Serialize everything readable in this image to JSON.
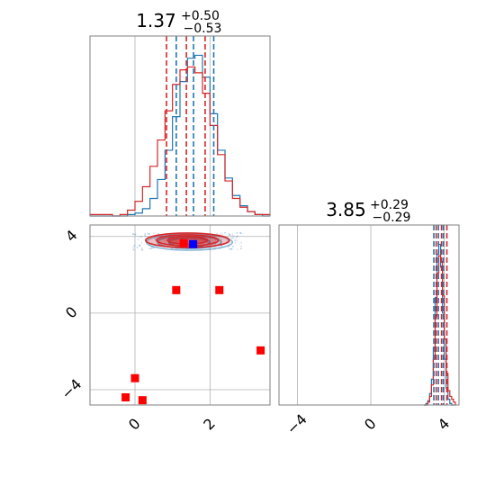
{
  "chart_data": {
    "type": "corner",
    "colors": {
      "series_a": "#1f77b4",
      "series_b": "#d62728",
      "marker_blue": "#0000ff",
      "marker_red": "#ff0000",
      "grid": "#b0b0b0",
      "axes": "#808080"
    },
    "panels": {
      "hist_x": {
        "title": {
          "main": "1.37",
          "sup": "+0.50",
          "sub": "−0.53"
        },
        "xlim": [
          -1.2,
          3.6
        ],
        "grid_x": [
          0,
          2
        ],
        "series_a": {
          "bins": [
            -1.2,
            -1.0,
            -0.8,
            -0.6,
            -0.4,
            -0.2,
            0.0,
            0.2,
            0.4,
            0.6,
            0.8,
            1.0,
            1.2,
            1.4,
            1.6,
            1.8,
            2.0,
            2.2,
            2.4,
            2.6,
            2.8,
            3.0,
            3.2,
            3.4,
            3.6
          ],
          "counts": [
            0,
            0,
            0,
            0,
            0,
            1,
            2,
            5,
            12,
            25,
            45,
            68,
            92,
            108,
            110,
            95,
            70,
            45,
            26,
            14,
            7,
            3,
            1,
            0
          ]
        },
        "series_b": {
          "bins": [
            -1.2,
            -1.0,
            -0.8,
            -0.6,
            -0.4,
            -0.2,
            0.0,
            0.2,
            0.4,
            0.6,
            0.8,
            1.0,
            1.2,
            1.4,
            1.6,
            1.8,
            2.0,
            2.2,
            2.4,
            2.6,
            2.8,
            3.0,
            3.2,
            3.4,
            3.6
          ],
          "counts": [
            1,
            1,
            1,
            0,
            1,
            4,
            10,
            20,
            34,
            52,
            72,
            90,
            100,
            102,
            98,
            84,
            62,
            42,
            24,
            12,
            6,
            3,
            1,
            1
          ]
        },
        "quantiles_a": [
          1.1,
          1.56,
          2.1
        ],
        "quantiles_b": [
          0.84,
          1.37,
          1.87
        ]
      },
      "hist_y": {
        "title": {
          "main": "3.85",
          "sup": "+0.29",
          "sub": "−0.29"
        },
        "xlim": [
          -5,
          4.8
        ],
        "grid_x": [
          -4,
          0,
          4
        ],
        "tick_labels": [
          "−4",
          "0",
          "4"
        ],
        "series_a": {
          "bins": [
            2.9,
            3.0,
            3.1,
            3.2,
            3.3,
            3.4,
            3.5,
            3.6,
            3.7,
            3.8,
            3.9,
            4.0,
            4.1,
            4.2,
            4.3,
            4.4,
            4.5,
            4.6
          ],
          "counts": [
            0,
            1,
            3,
            8,
            18,
            40,
            75,
            105,
            112,
            96,
            64,
            32,
            12,
            4,
            1,
            0,
            0
          ]
        },
        "series_b": {
          "bins": [
            2.9,
            3.0,
            3.1,
            3.2,
            3.3,
            3.4,
            3.5,
            3.6,
            3.7,
            3.8,
            3.9,
            4.0,
            4.1,
            4.2,
            4.3,
            4.4,
            4.5,
            4.6
          ],
          "counts": [
            0,
            0,
            2,
            6,
            14,
            32,
            62,
            92,
            104,
            100,
            76,
            46,
            22,
            10,
            6,
            4,
            2
          ]
        },
        "quantiles_a": [
          3.43,
          3.68,
          3.95
        ],
        "quantiles_b": [
          3.56,
          3.85,
          4.14
        ]
      },
      "scatter": {
        "xlim": [
          -1.2,
          3.6
        ],
        "ylim": [
          -4.8,
          4.6
        ],
        "grid_x": [
          0,
          2
        ],
        "grid_y": [
          -4,
          0,
          4
        ],
        "x_tick_labels": [
          "0",
          "2"
        ],
        "y_tick_labels": [
          "−4",
          "0",
          "4"
        ],
        "contour_center": [
          1.4,
          3.75
        ],
        "contour_half_widths": [
          [
            1.15,
            0.42
          ],
          [
            0.85,
            0.32
          ],
          [
            0.55,
            0.22
          ]
        ],
        "blue_marker": [
          1.55,
          3.6
        ],
        "red_markers": [
          [
            1.3,
            3.65
          ],
          [
            1.1,
            1.2
          ],
          [
            2.25,
            1.2
          ],
          [
            3.35,
            -1.95
          ],
          [
            0.0,
            -3.4
          ],
          [
            -0.25,
            -4.4
          ],
          [
            0.2,
            -4.55
          ]
        ]
      }
    }
  }
}
